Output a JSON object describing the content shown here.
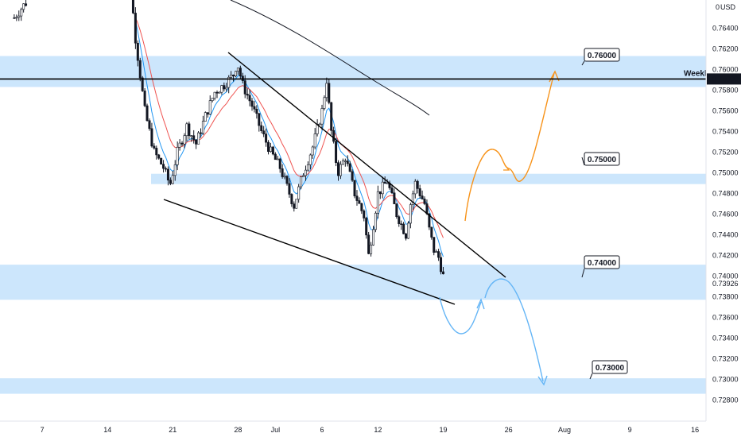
{
  "chart_data": {
    "type": "candlestick",
    "currency_label": "USD",
    "scale_mode_label": "0",
    "y_range": [
      0.7275,
      0.7665
    ],
    "y_ticks": [
      "0.76400",
      "0.76200",
      "0.76000",
      "0.75800",
      "0.75600",
      "0.75400",
      "0.75200",
      "0.75000",
      "0.74800",
      "0.74600",
      "0.74400",
      "0.74200",
      "0.74000",
      "0.73800",
      "0.73600",
      "0.73400",
      "0.73200",
      "0.73000",
      "0.72800"
    ],
    "x_ticks": [
      {
        "day": 3,
        "label": "7"
      },
      {
        "day": 10,
        "label": "14"
      },
      {
        "day": 17,
        "label": "21"
      },
      {
        "day": 24,
        "label": "28"
      },
      {
        "day": 28,
        "label": "Jul"
      },
      {
        "day": 33,
        "label": "6"
      },
      {
        "day": 39,
        "label": "12"
      },
      {
        "day": 46,
        "label": "19"
      },
      {
        "day": 53,
        "label": "26"
      },
      {
        "day": 59,
        "label": "Aug"
      },
      {
        "day": 66,
        "label": "9"
      },
      {
        "day": 73,
        "label": "16"
      }
    ],
    "x_day_range": [
      0,
      74
    ],
    "current_price": "0.73926",
    "weekly_level": {
      "label": "Weekly",
      "value": 0.76,
      "price_tag": "0.76000"
    },
    "zones": [
      {
        "from": 0.7583,
        "to": 0.7613
      },
      {
        "from": 0.7489,
        "to": 0.7499
      },
      {
        "from": 0.7377,
        "to": 0.7411
      },
      {
        "from": 0.7286,
        "to": 0.7301
      }
    ],
    "level_labels": [
      "0.76000",
      "0.75000",
      "0.74000",
      "0.73000"
    ],
    "colors": {
      "up": "#26a69a",
      "down": "#ef5350",
      "candle_body": "#131722",
      "zone": "#bbdefb",
      "ema_fast": "#2196f3",
      "ema_slow": "#ef5350",
      "ma_long": "#131722",
      "bull_path": "#f7931a",
      "bear_path": "#64b5f6",
      "price_tag": "#131722"
    }
  }
}
